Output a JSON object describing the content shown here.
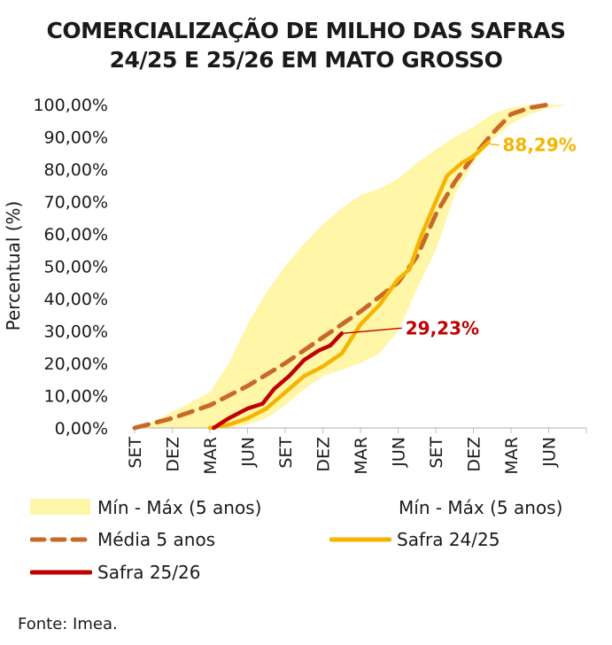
{
  "title_line1": "COMERCIALIZAÇÃO DE MILHO DAS SAFRAS",
  "title_line2": "24/25 E 25/26 EM MATO GROSSO",
  "source": "Fonte: Imea.",
  "chart_data": {
    "type": "line",
    "ylabel": "Percentual (%)",
    "ylim": [
      0,
      100
    ],
    "x_positions": [
      0,
      12
    ],
    "categories": [
      "SET",
      "DEZ",
      "MAR",
      "JUN",
      "SET",
      "DEZ",
      "MAR",
      "JUN",
      "SET",
      "DEZ",
      "MAR",
      "JUN"
    ],
    "y_ticks": [
      "0,00%",
      "10,00%",
      "20,00%",
      "30,00%",
      "40,00%",
      "50,00%",
      "60,00%",
      "70,00%",
      "80,00%",
      "90,00%",
      "100,00%"
    ],
    "legend": {
      "band": "Mín - Máx (5 anos)",
      "band_duplicate": "Mín - Máx (5 anos)",
      "media": "Média 5 anos",
      "safra_2425": "Safra 24/25",
      "safra_2526": "Safra 25/26"
    },
    "colors": {
      "band": "#fff6a8",
      "media": "#c8692a",
      "safra_2425": "#f5b400",
      "safra_2526": "#c00000"
    },
    "band_max": [
      [
        0,
        0
      ],
      [
        0.5,
        2
      ],
      [
        1,
        5
      ],
      [
        1.5,
        8
      ],
      [
        2,
        11
      ],
      [
        2.5,
        20
      ],
      [
        3,
        32
      ],
      [
        3.5,
        42
      ],
      [
        4,
        50
      ],
      [
        4.5,
        57
      ],
      [
        5,
        63
      ],
      [
        5.5,
        68
      ],
      [
        6,
        72
      ],
      [
        6.5,
        74
      ],
      [
        7,
        77
      ],
      [
        7.5,
        82
      ],
      [
        8,
        86
      ],
      [
        8.5,
        90
      ],
      [
        9,
        93
      ],
      [
        9.5,
        97
      ],
      [
        10,
        99
      ],
      [
        10.5,
        100
      ],
      [
        11,
        100
      ],
      [
        11.5,
        100
      ]
    ],
    "band_min": [
      [
        11.5,
        100
      ],
      [
        11,
        99
      ],
      [
        10.5,
        97
      ],
      [
        10,
        94
      ],
      [
        9.5,
        89
      ],
      [
        9,
        82
      ],
      [
        8.5,
        72
      ],
      [
        8,
        55
      ],
      [
        7.5,
        43
      ],
      [
        7,
        30
      ],
      [
        6.5,
        23
      ],
      [
        6,
        20
      ],
      [
        5.5,
        18
      ],
      [
        5,
        16
      ],
      [
        4.5,
        12
      ],
      [
        4,
        7
      ],
      [
        3.5,
        3
      ],
      [
        3,
        1
      ],
      [
        2.5,
        0
      ],
      [
        2,
        0
      ],
      [
        1.5,
        0
      ],
      [
        1,
        0
      ],
      [
        0.5,
        0
      ],
      [
        0,
        0
      ]
    ],
    "series": [
      {
        "key": "media",
        "name": "Média 5 anos",
        "points": [
          [
            0,
            0
          ],
          [
            1,
            3
          ],
          [
            2,
            7
          ],
          [
            3,
            13
          ],
          [
            4,
            20
          ],
          [
            5,
            28
          ],
          [
            6,
            36
          ],
          [
            7,
            45
          ],
          [
            7.5,
            53
          ],
          [
            8,
            66
          ],
          [
            8.5,
            76
          ],
          [
            9,
            84
          ],
          [
            9.5,
            91
          ],
          [
            10,
            97
          ],
          [
            10.5,
            99
          ],
          [
            11,
            100
          ]
        ]
      },
      {
        "key": "safra_2425",
        "name": "Safra 24/25",
        "points": [
          [
            2,
            0
          ],
          [
            2.5,
            1
          ],
          [
            3,
            3
          ],
          [
            3.5,
            6
          ],
          [
            4,
            11
          ],
          [
            4.5,
            16
          ],
          [
            5,
            19
          ],
          [
            5.5,
            23
          ],
          [
            6,
            32
          ],
          [
            6.5,
            38
          ],
          [
            7,
            46
          ],
          [
            7.3,
            49
          ],
          [
            7.6,
            59
          ],
          [
            8,
            70
          ],
          [
            8.3,
            78
          ],
          [
            8.7,
            82
          ],
          [
            9,
            84
          ],
          [
            9.4,
            88.29
          ]
        ]
      },
      {
        "key": "safra_2526",
        "name": "Safra 25/26",
        "points": [
          [
            2.1,
            0
          ],
          [
            2.5,
            3
          ],
          [
            3,
            6
          ],
          [
            3.4,
            7.5
          ],
          [
            3.7,
            12
          ],
          [
            4.1,
            16
          ],
          [
            4.5,
            21
          ],
          [
            4.9,
            24
          ],
          [
            5.2,
            25.5
          ],
          [
            5.5,
            29.23
          ]
        ]
      }
    ],
    "annotations": [
      {
        "series": "safra_2526",
        "text": "29,23%",
        "x": 5.5,
        "y": 29.23
      },
      {
        "series": "safra_2425",
        "text": "88,29%",
        "x": 9.4,
        "y": 88.29
      }
    ]
  }
}
